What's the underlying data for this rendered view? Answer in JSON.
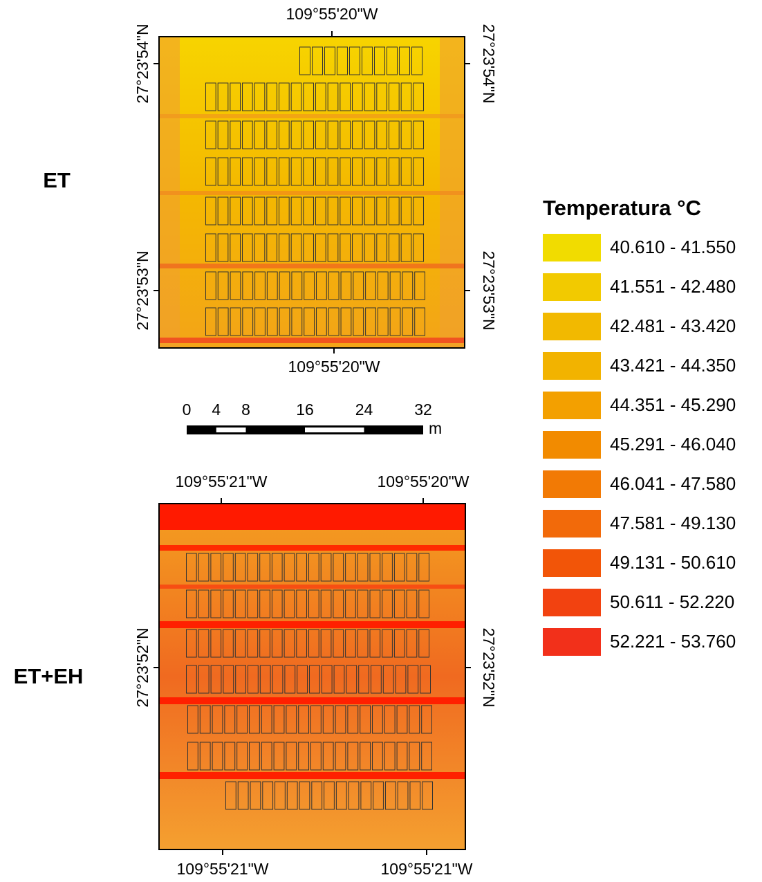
{
  "panels": [
    {
      "label": "ET",
      "top_labels": [
        "109°55'20\"W"
      ],
      "bottom_labels": [
        "109°55'20\"W"
      ],
      "left_labels": [
        "27°23'54\"N",
        "27°23'53\"N"
      ],
      "right_labels": [
        "27°23'54\"N",
        "27°23'53\"N"
      ]
    },
    {
      "label": "ET+EH",
      "top_labels": [
        "109°55'21\"W",
        "109°55'20\"W"
      ],
      "bottom_labels": [
        "109°55'21\"W",
        "109°55'21\"W"
      ],
      "left_labels": [
        "27°23'52\"N"
      ],
      "right_labels": [
        "27°23'52\"N"
      ]
    }
  ],
  "scale_bar": {
    "ticks": [
      0,
      4,
      8,
      16,
      24,
      32
    ],
    "unit": "m"
  },
  "legend": {
    "title": "Temperatura °C",
    "items": [
      {
        "label": "40.610 - 41.550",
        "color": "#f1dc00"
      },
      {
        "label": "41.551 - 42.480",
        "color": "#f2ca00"
      },
      {
        "label": "42.481 - 43.420",
        "color": "#f2b900"
      },
      {
        "label": "43.421 - 44.350",
        "color": "#f2b300"
      },
      {
        "label": "44.351 - 45.290",
        "color": "#f3a000"
      },
      {
        "label": "45.291 - 46.040",
        "color": "#f28b00"
      },
      {
        "label": "46.041 - 47.580",
        "color": "#f27a05"
      },
      {
        "label": "47.581 - 49.130",
        "color": "#f26a0a"
      },
      {
        "label": "49.131 - 50.610",
        "color": "#f25508"
      },
      {
        "label": "50.611 - 52.220",
        "color": "#f24210"
      },
      {
        "label": "52.221 - 53.760",
        "color": "#f2301a"
      }
    ]
  }
}
